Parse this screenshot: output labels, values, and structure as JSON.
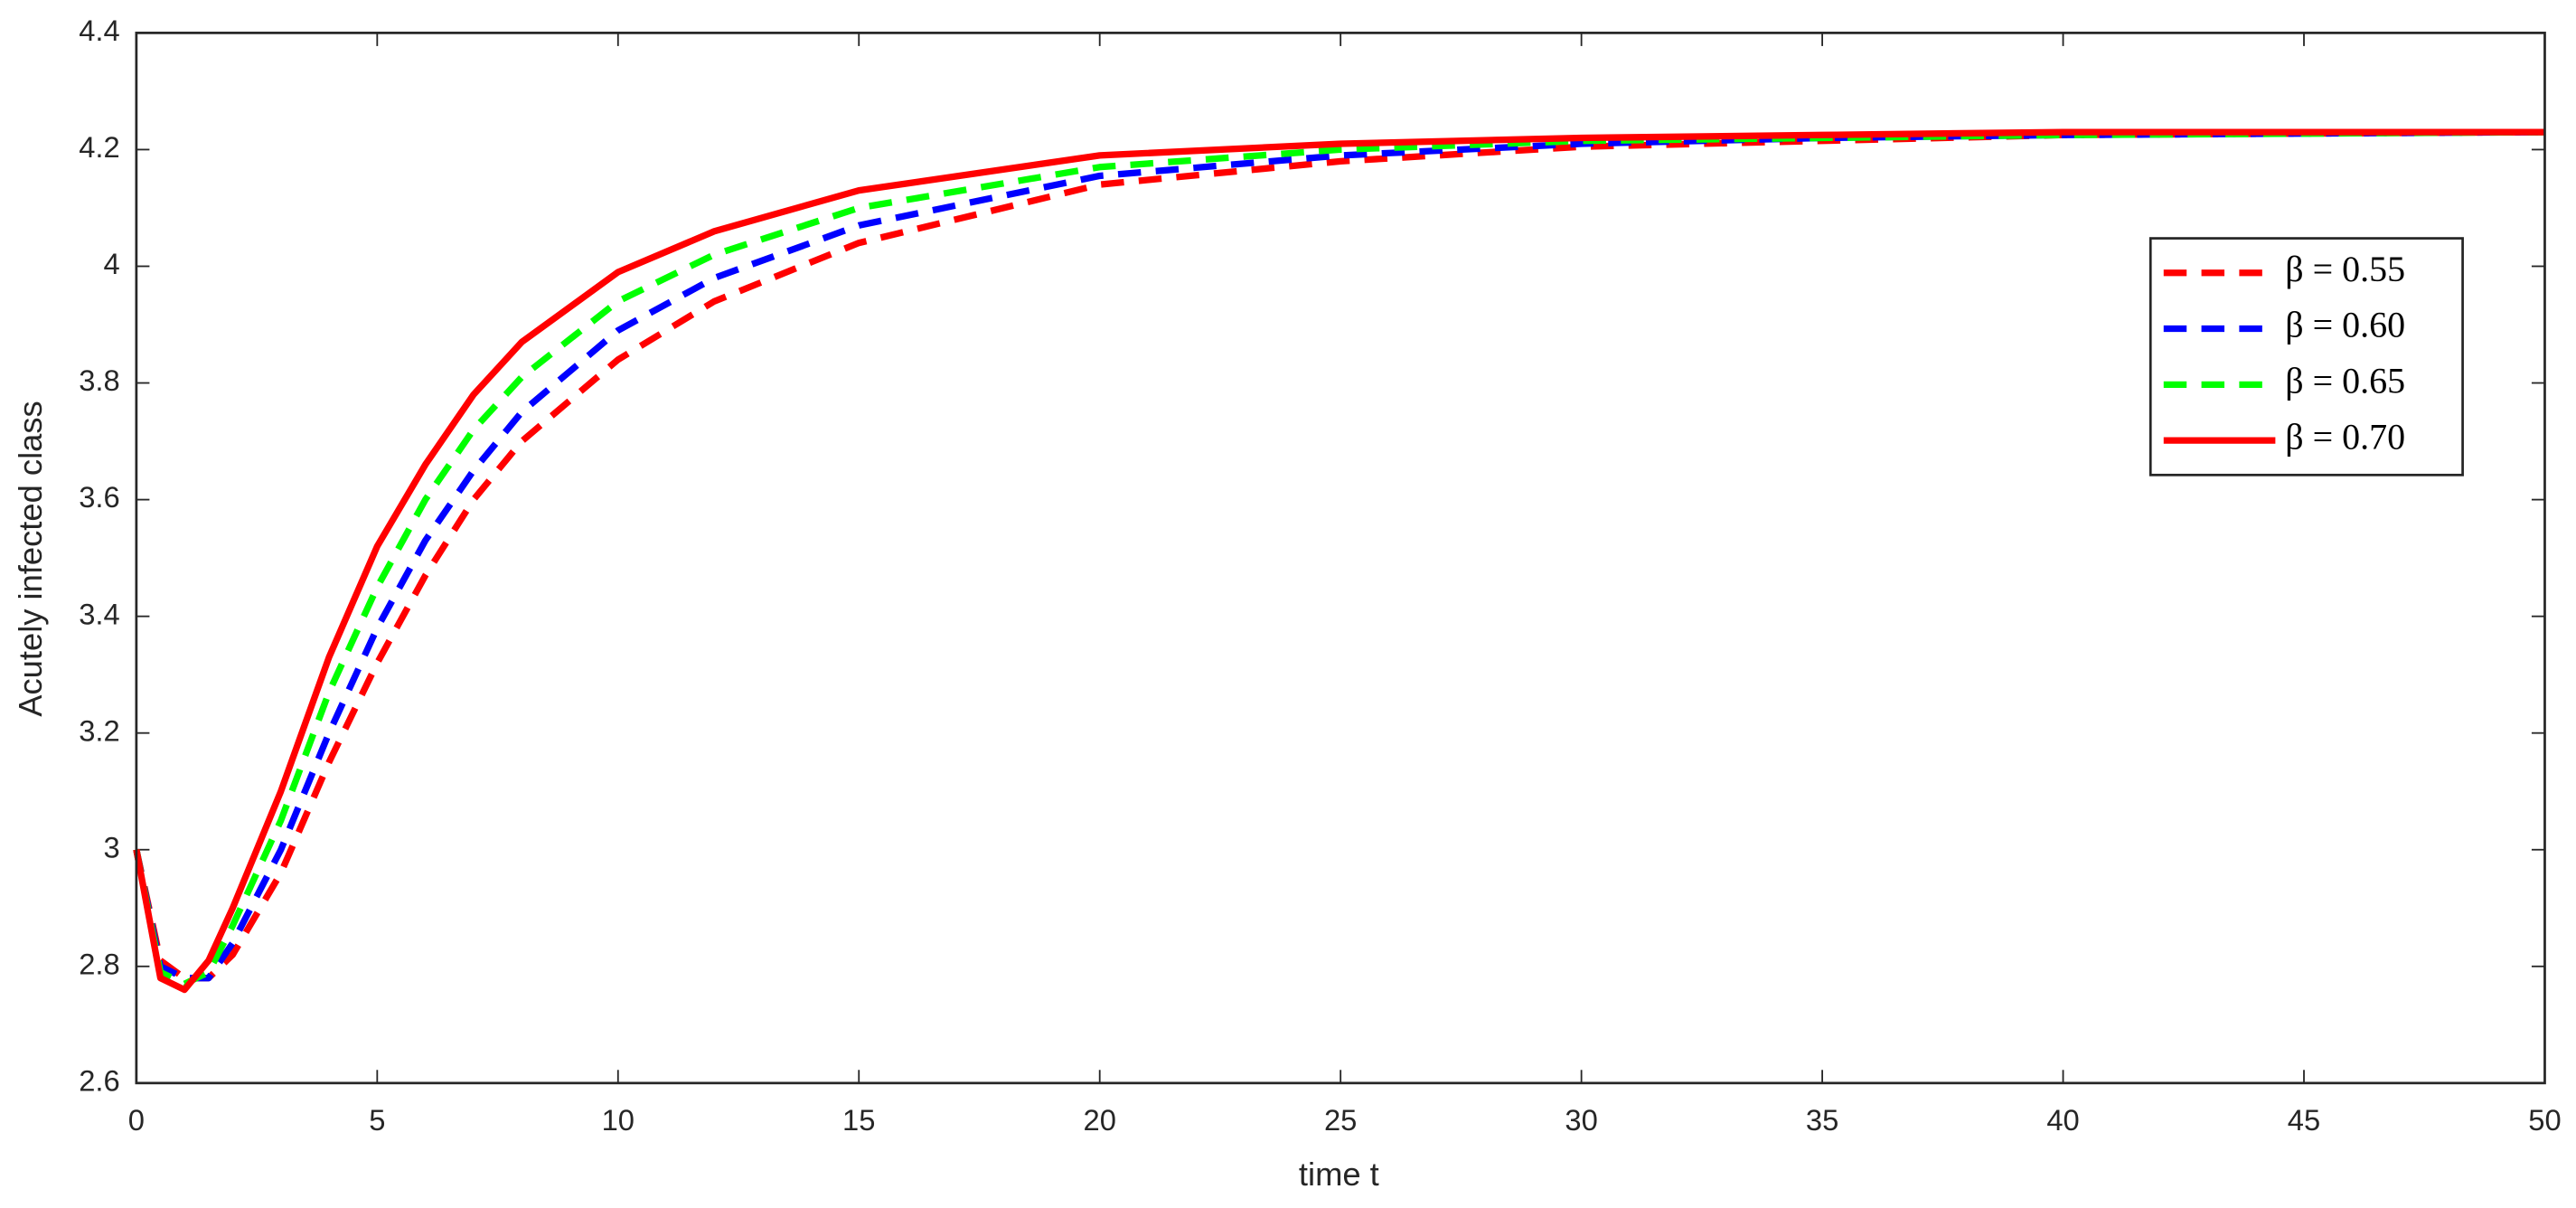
{
  "chart_data": {
    "type": "line",
    "xlabel": "time t",
    "ylabel": "Acutely infected class",
    "x": [
      0,
      0.5,
      1,
      1.5,
      2,
      3,
      4,
      5,
      6,
      7,
      8,
      10,
      12,
      15,
      20,
      25,
      30,
      35,
      40,
      50
    ],
    "series": [
      {
        "name": "β = 0.55",
        "color": "#ff0000",
        "style": "dashed",
        "values": [
          3.0,
          2.81,
          2.78,
          2.78,
          2.82,
          2.96,
          3.15,
          3.32,
          3.47,
          3.6,
          3.7,
          3.84,
          3.94,
          4.04,
          4.14,
          4.18,
          4.205,
          4.215,
          4.225,
          4.23
        ]
      },
      {
        "name": "β = 0.60",
        "color": "#0000ff",
        "style": "dashed",
        "values": [
          3.0,
          2.8,
          2.78,
          2.78,
          2.84,
          3.0,
          3.2,
          3.38,
          3.53,
          3.65,
          3.75,
          3.89,
          3.98,
          4.07,
          4.155,
          4.19,
          4.21,
          4.22,
          4.225,
          4.23
        ]
      },
      {
        "name": "β = 0.65",
        "color": "#00ff00",
        "style": "dashed",
        "values": [
          3.0,
          2.79,
          2.77,
          2.79,
          2.87,
          3.05,
          3.27,
          3.45,
          3.6,
          3.72,
          3.81,
          3.94,
          4.02,
          4.1,
          4.17,
          4.2,
          4.215,
          4.22,
          4.225,
          4.23
        ]
      },
      {
        "name": "β = 0.70",
        "color": "#ff0000",
        "style": "solid",
        "values": [
          3.0,
          2.78,
          2.76,
          2.81,
          2.9,
          3.1,
          3.33,
          3.52,
          3.66,
          3.78,
          3.87,
          3.99,
          4.06,
          4.13,
          4.19,
          4.21,
          4.22,
          4.225,
          4.23,
          4.23
        ]
      }
    ],
    "xlim": [
      0,
      50
    ],
    "xticks": [
      0,
      5,
      10,
      15,
      20,
      25,
      30,
      35,
      40,
      45,
      50
    ],
    "ylim": [
      2.6,
      4.4
    ],
    "yticks": [
      2.6,
      2.8,
      3,
      3.2,
      3.4,
      3.6,
      3.8,
      4,
      4.2,
      4.4
    ],
    "grid": false,
    "legend": "upper right"
  }
}
